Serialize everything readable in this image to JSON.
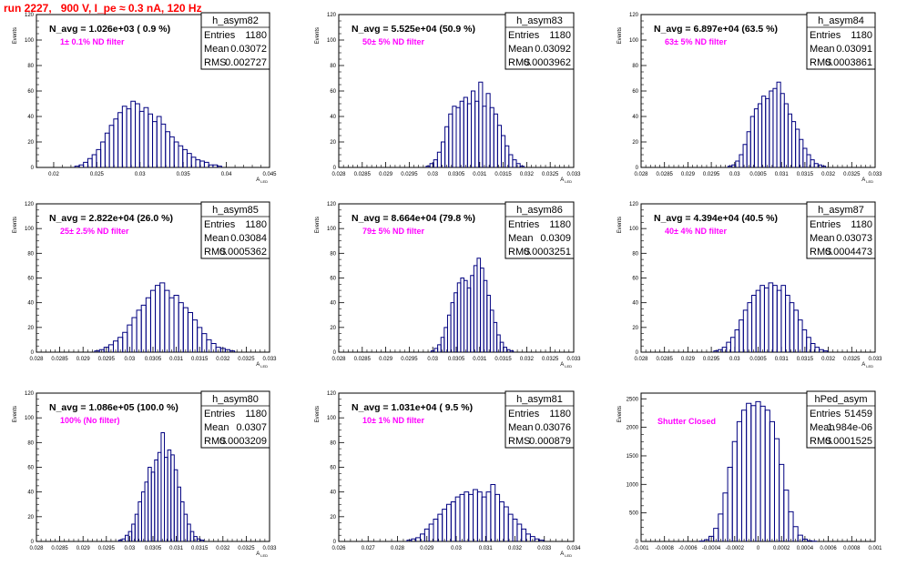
{
  "run_title": "run 2227,   900 V, I_pe ≈ 0.3 nA, 120 Hz",
  "colors": {
    "hist": "#000080",
    "filter_label": "#ff00ff",
    "run_title": "#ff0000",
    "axis": "#000000"
  },
  "chart_data": [
    {
      "type": "histogram",
      "name": "h_asym82",
      "ylabel": "Events",
      "xlabel": "A_LED",
      "navg": "N_avg = 1.026e+03 ( 0.9 %)",
      "filter": "1± 0.1% ND filter",
      "stats": {
        "entries": "1180",
        "mean": "0.03072",
        "rms": "0.002727"
      },
      "xlim": [
        0.018,
        0.045
      ],
      "ylim": [
        0,
        120
      ],
      "xticks": [
        "0.02",
        "0.025",
        "0.03",
        "0.035",
        "0.04",
        "0.045"
      ],
      "xtick_values": [
        0.02,
        0.025,
        0.03,
        0.035,
        0.04,
        0.045
      ],
      "yticks": [
        "0",
        "20",
        "40",
        "60",
        "80",
        "100",
        "120"
      ],
      "x": [
        0.0227,
        0.0232,
        0.0237,
        0.0242,
        0.0247,
        0.0252,
        0.0257,
        0.0262,
        0.0267,
        0.0272,
        0.0277,
        0.0282,
        0.0287,
        0.0292,
        0.0297,
        0.0302,
        0.0307,
        0.0312,
        0.0317,
        0.0322,
        0.0327,
        0.0332,
        0.0337,
        0.0342,
        0.0347,
        0.0352,
        0.0357,
        0.0362,
        0.0367,
        0.0372,
        0.0377,
        0.0382,
        0.0387,
        0.0392
      ],
      "values": [
        1,
        2,
        4,
        7,
        10,
        14,
        20,
        27,
        33,
        38,
        43,
        48,
        46,
        52,
        50,
        44,
        47,
        42,
        36,
        40,
        34,
        28,
        24,
        20,
        17,
        14,
        11,
        8,
        6,
        5,
        4,
        2,
        2,
        1
      ]
    },
    {
      "type": "histogram",
      "name": "h_asym83",
      "ylabel": "Events",
      "xlabel": "A_LED",
      "navg": "N_avg = 5.525e+04 (50.9 %)",
      "filter": "50± 5% ND filter",
      "stats": {
        "entries": "1180",
        "mean": "0.03092",
        "rms": "0.0003962"
      },
      "xlim": [
        0.028,
        0.033
      ],
      "ylim": [
        0,
        120
      ],
      "xticks": [
        "0.028",
        "0.0285",
        "0.029",
        "0.0295",
        "0.03",
        "0.0305",
        "0.031",
        "0.0315",
        "0.032",
        "0.0325",
        "0.033"
      ],
      "xtick_values": [
        0.028,
        0.0285,
        0.029,
        0.0295,
        0.03,
        0.0305,
        0.031,
        0.0315,
        0.032,
        0.0325,
        0.033
      ],
      "yticks": [
        "0",
        "20",
        "40",
        "60",
        "80",
        "100",
        "120"
      ],
      "x": [
        0.0299,
        0.02998,
        0.03006,
        0.03014,
        0.03022,
        0.0303,
        0.03038,
        0.03046,
        0.03054,
        0.03062,
        0.0307,
        0.03078,
        0.03086,
        0.03094,
        0.03102,
        0.0311,
        0.03118,
        0.03126,
        0.03134,
        0.03142,
        0.0315,
        0.03158,
        0.03166,
        0.03174,
        0.03182,
        0.0319
      ],
      "values": [
        1,
        3,
        6,
        12,
        20,
        32,
        42,
        48,
        47,
        52,
        55,
        50,
        60,
        52,
        67,
        48,
        58,
        47,
        42,
        33,
        25,
        17,
        10,
        6,
        3,
        1
      ]
    },
    {
      "type": "histogram",
      "name": "h_asym84",
      "ylabel": "Events",
      "xlabel": "A_LED",
      "navg": "N_avg = 6.897e+04 (63.5 %)",
      "filter": "63± 5% ND filter",
      "stats": {
        "entries": "1180",
        "mean": "0.03091",
        "rms": "0.0003861"
      },
      "xlim": [
        0.028,
        0.033
      ],
      "ylim": [
        0,
        120
      ],
      "xticks": [
        "0.028",
        "0.0285",
        "0.029",
        "0.0295",
        "0.03",
        "0.0305",
        "0.031",
        "0.0315",
        "0.032",
        "0.0325",
        "0.033"
      ],
      "xtick_values": [
        0.028,
        0.0285,
        0.029,
        0.0295,
        0.03,
        0.0305,
        0.031,
        0.0315,
        0.032,
        0.0325,
        0.033
      ],
      "yticks": [
        "0",
        "20",
        "40",
        "60",
        "80",
        "100",
        "120"
      ],
      "x": [
        0.0299,
        0.02998,
        0.03006,
        0.03014,
        0.03022,
        0.0303,
        0.03038,
        0.03046,
        0.03054,
        0.03062,
        0.0307,
        0.03078,
        0.03086,
        0.03094,
        0.03102,
        0.0311,
        0.03118,
        0.03126,
        0.03134,
        0.03142,
        0.0315,
        0.03158,
        0.03166,
        0.03174,
        0.03182,
        0.0319
      ],
      "values": [
        1,
        2,
        5,
        10,
        18,
        28,
        40,
        46,
        50,
        56,
        54,
        60,
        62,
        67,
        58,
        50,
        42,
        36,
        30,
        22,
        15,
        10,
        6,
        3,
        2,
        1
      ]
    },
    {
      "type": "histogram",
      "name": "h_asym85",
      "ylabel": "Events",
      "xlabel": "A_LED",
      "navg": "N_avg = 2.822e+04 (26.0 %)",
      "filter": "25± 2.5% ND filter",
      "stats": {
        "entries": "1180",
        "mean": "0.03084",
        "rms": "0.0005362"
      },
      "xlim": [
        0.028,
        0.033
      ],
      "ylim": [
        0,
        120
      ],
      "xticks": [
        "0.028",
        "0.0285",
        "0.029",
        "0.0295",
        "0.03",
        "0.0305",
        "0.031",
        "0.0315",
        "0.032",
        "0.0325",
        "0.033"
      ],
      "xtick_values": [
        0.028,
        0.0285,
        0.029,
        0.0295,
        0.03,
        0.0305,
        0.031,
        0.0315,
        0.032,
        0.0325,
        0.033
      ],
      "yticks": [
        "0",
        "20",
        "40",
        "60",
        "80",
        "100",
        "120"
      ],
      "x": [
        0.0293,
        0.0294,
        0.0295,
        0.0296,
        0.0297,
        0.0298,
        0.0299,
        0.03,
        0.0301,
        0.0302,
        0.0303,
        0.0304,
        0.0305,
        0.0306,
        0.0307,
        0.0308,
        0.0309,
        0.031,
        0.0311,
        0.0312,
        0.0313,
        0.0314,
        0.0315,
        0.0316,
        0.0317,
        0.0318,
        0.0319,
        0.032,
        0.0321,
        0.0322
      ],
      "values": [
        1,
        2,
        4,
        6,
        9,
        12,
        16,
        22,
        28,
        34,
        38,
        44,
        50,
        54,
        56,
        50,
        44,
        46,
        40,
        36,
        32,
        26,
        20,
        15,
        10,
        7,
        4,
        3,
        2,
        1
      ]
    },
    {
      "type": "histogram",
      "name": "h_asym86",
      "ylabel": "Events",
      "xlabel": "A_LED",
      "navg": "N_avg = 8.664e+04 (79.8 %)",
      "filter": "79± 5% ND filter",
      "stats": {
        "entries": "1180",
        "mean": "0.0309",
        "rms": "0.0003251"
      },
      "xlim": [
        0.028,
        0.033
      ],
      "ylim": [
        0,
        120
      ],
      "xticks": [
        "0.028",
        "0.0285",
        "0.029",
        "0.0295",
        "0.03",
        "0.0305",
        "0.031",
        "0.0315",
        "0.032",
        "0.0325",
        "0.033"
      ],
      "xtick_values": [
        0.028,
        0.0285,
        0.029,
        0.0295,
        0.03,
        0.0305,
        0.031,
        0.0315,
        0.032,
        0.0325,
        0.033
      ],
      "yticks": [
        "0",
        "20",
        "40",
        "60",
        "80",
        "100",
        "120"
      ],
      "x": [
        0.03,
        0.03007,
        0.03014,
        0.03021,
        0.03028,
        0.03035,
        0.03042,
        0.03049,
        0.03056,
        0.03063,
        0.0307,
        0.03077,
        0.03084,
        0.03091,
        0.03098,
        0.03105,
        0.03112,
        0.03119,
        0.03126,
        0.03133,
        0.0314,
        0.03147,
        0.03154,
        0.03161,
        0.03168
      ],
      "values": [
        1,
        3,
        6,
        12,
        20,
        30,
        40,
        48,
        56,
        60,
        58,
        52,
        62,
        70,
        76,
        68,
        58,
        46,
        34,
        24,
        14,
        8,
        4,
        2,
        1
      ]
    },
    {
      "type": "histogram",
      "name": "h_asym87",
      "ylabel": "Events",
      "xlabel": "A_LED",
      "navg": "N_avg = 4.394e+04 (40.5 %)",
      "filter": "40± 4% ND filter",
      "stats": {
        "entries": "1180",
        "mean": "0.03073",
        "rms": "0.0004473"
      },
      "xlim": [
        0.028,
        0.033
      ],
      "ylim": [
        0,
        120
      ],
      "xticks": [
        "0.028",
        "0.0285",
        "0.029",
        "0.0295",
        "0.03",
        "0.0305",
        "0.031",
        "0.0315",
        "0.032",
        "0.0325",
        "0.033"
      ],
      "xtick_values": [
        0.028,
        0.0285,
        0.029,
        0.0295,
        0.03,
        0.0305,
        0.031,
        0.0315,
        0.032,
        0.0325,
        0.033
      ],
      "yticks": [
        "0",
        "20",
        "40",
        "60",
        "80",
        "100",
        "120"
      ],
      "x": [
        0.0296,
        0.02969,
        0.02978,
        0.02987,
        0.02996,
        0.03005,
        0.03014,
        0.03023,
        0.03032,
        0.03041,
        0.0305,
        0.03059,
        0.03068,
        0.03077,
        0.03086,
        0.03095,
        0.03104,
        0.03113,
        0.03122,
        0.03131,
        0.0314,
        0.03149,
        0.03158,
        0.03167,
        0.03176,
        0.03185,
        0.03194
      ],
      "values": [
        1,
        2,
        4,
        8,
        12,
        18,
        26,
        34,
        40,
        46,
        50,
        54,
        52,
        56,
        54,
        50,
        54,
        46,
        40,
        34,
        26,
        18,
        12,
        7,
        4,
        2,
        1
      ]
    },
    {
      "type": "histogram",
      "name": "h_asym80",
      "ylabel": "Events",
      "xlabel": "A_LED",
      "navg": "N_avg = 1.086e+05 (100.0 %)",
      "filter": "100% (No filter)",
      "stats": {
        "entries": "1180",
        "mean": "0.0307",
        "rms": "0.0003209"
      },
      "xlim": [
        0.028,
        0.033
      ],
      "ylim": [
        0,
        120
      ],
      "xticks": [
        "0.028",
        "0.0285",
        "0.029",
        "0.0295",
        "0.03",
        "0.0305",
        "0.031",
        "0.0315",
        "0.032",
        "0.0325",
        "0.033"
      ],
      "xtick_values": [
        0.028,
        0.0285,
        0.029,
        0.0295,
        0.03,
        0.0305,
        0.031,
        0.0315,
        0.032,
        0.0325,
        0.033
      ],
      "yticks": [
        "0",
        "20",
        "40",
        "60",
        "80",
        "100",
        "120"
      ],
      "x": [
        0.0298,
        0.02987,
        0.02994,
        0.03001,
        0.03008,
        0.03015,
        0.03022,
        0.03029,
        0.03036,
        0.03043,
        0.0305,
        0.03057,
        0.03064,
        0.03071,
        0.03078,
        0.03085,
        0.03092,
        0.03099,
        0.03106,
        0.03113,
        0.0312,
        0.03127,
        0.03134,
        0.03141,
        0.03148,
        0.03155
      ],
      "values": [
        1,
        2,
        5,
        8,
        14,
        22,
        32,
        40,
        48,
        60,
        56,
        66,
        72,
        88,
        68,
        74,
        70,
        58,
        44,
        32,
        22,
        14,
        8,
        4,
        2,
        1
      ]
    },
    {
      "type": "histogram",
      "name": "h_asym81",
      "ylabel": "Events",
      "xlabel": "A_LED",
      "navg": "N_avg = 1.031e+04 ( 9.5 %)",
      "filter": "10± 1% ND filter",
      "stats": {
        "entries": "1180",
        "mean": "0.03076",
        "rms": "0.000879"
      },
      "xlim": [
        0.026,
        0.034
      ],
      "ylim": [
        0,
        120
      ],
      "xticks": [
        "0.026",
        "0.027",
        "0.028",
        "0.029",
        "0.03",
        "0.031",
        "0.032",
        "0.033",
        "0.034"
      ],
      "xtick_values": [
        0.026,
        0.027,
        0.028,
        0.029,
        0.03,
        0.031,
        0.032,
        0.033,
        0.034
      ],
      "yticks": [
        "0",
        "20",
        "40",
        "60",
        "80",
        "100",
        "120"
      ],
      "x": [
        0.0284,
        0.02855,
        0.0287,
        0.02885,
        0.029,
        0.02915,
        0.0293,
        0.02945,
        0.0296,
        0.02975,
        0.0299,
        0.03005,
        0.0302,
        0.03035,
        0.0305,
        0.03065,
        0.0308,
        0.03095,
        0.0311,
        0.03125,
        0.0314,
        0.03155,
        0.0317,
        0.03185,
        0.032,
        0.03215,
        0.0323,
        0.03245,
        0.0326,
        0.03275,
        0.0329
      ],
      "values": [
        1,
        2,
        3,
        6,
        10,
        14,
        18,
        22,
        26,
        30,
        32,
        36,
        38,
        40,
        38,
        42,
        40,
        36,
        40,
        46,
        38,
        32,
        28,
        22,
        18,
        14,
        10,
        6,
        4,
        2,
        1
      ]
    },
    {
      "type": "histogram",
      "name": "hPed_asym",
      "ylabel": "Events",
      "xlabel": "",
      "navg": "",
      "filter": "Shutter Closed",
      "stats": {
        "entries": "51459",
        "mean": "1.984e-06",
        "rms": "0.0001525"
      },
      "xlim": [
        -0.001,
        0.001
      ],
      "ylim": [
        0,
        2600
      ],
      "xticks": [
        "-0.001",
        "-0.0008",
        "-0.0006",
        "-0.0004",
        "-0.0002",
        "0",
        "0.0002",
        "0.0004",
        "0.0006",
        "0.0008",
        "0.001"
      ],
      "xtick_values": [
        -0.001,
        -0.0008,
        -0.0006,
        -0.0004,
        -0.0002,
        0,
        0.0002,
        0.0004,
        0.0006,
        0.0008,
        0.001
      ],
      "yticks": [
        "0",
        "500",
        "1000",
        "1500",
        "2000",
        "2500"
      ],
      "x": [
        -0.00048,
        -0.00044,
        -0.0004,
        -0.00036,
        -0.00032,
        -0.00028,
        -0.00024,
        -0.0002,
        -0.00016,
        -0.00012,
        -8e-05,
        -4e-05,
        0,
        4e-05,
        8e-05,
        0.00012,
        0.00016,
        0.0002,
        0.00024,
        0.00028,
        0.00032,
        0.00036,
        0.0004,
        0.00044,
        0.00048
      ],
      "values": [
        5,
        30,
        90,
        230,
        480,
        850,
        1300,
        1750,
        2100,
        2300,
        2420,
        2380,
        2450,
        2370,
        2300,
        2100,
        1800,
        1350,
        900,
        520,
        260,
        110,
        40,
        12,
        4
      ]
    }
  ]
}
